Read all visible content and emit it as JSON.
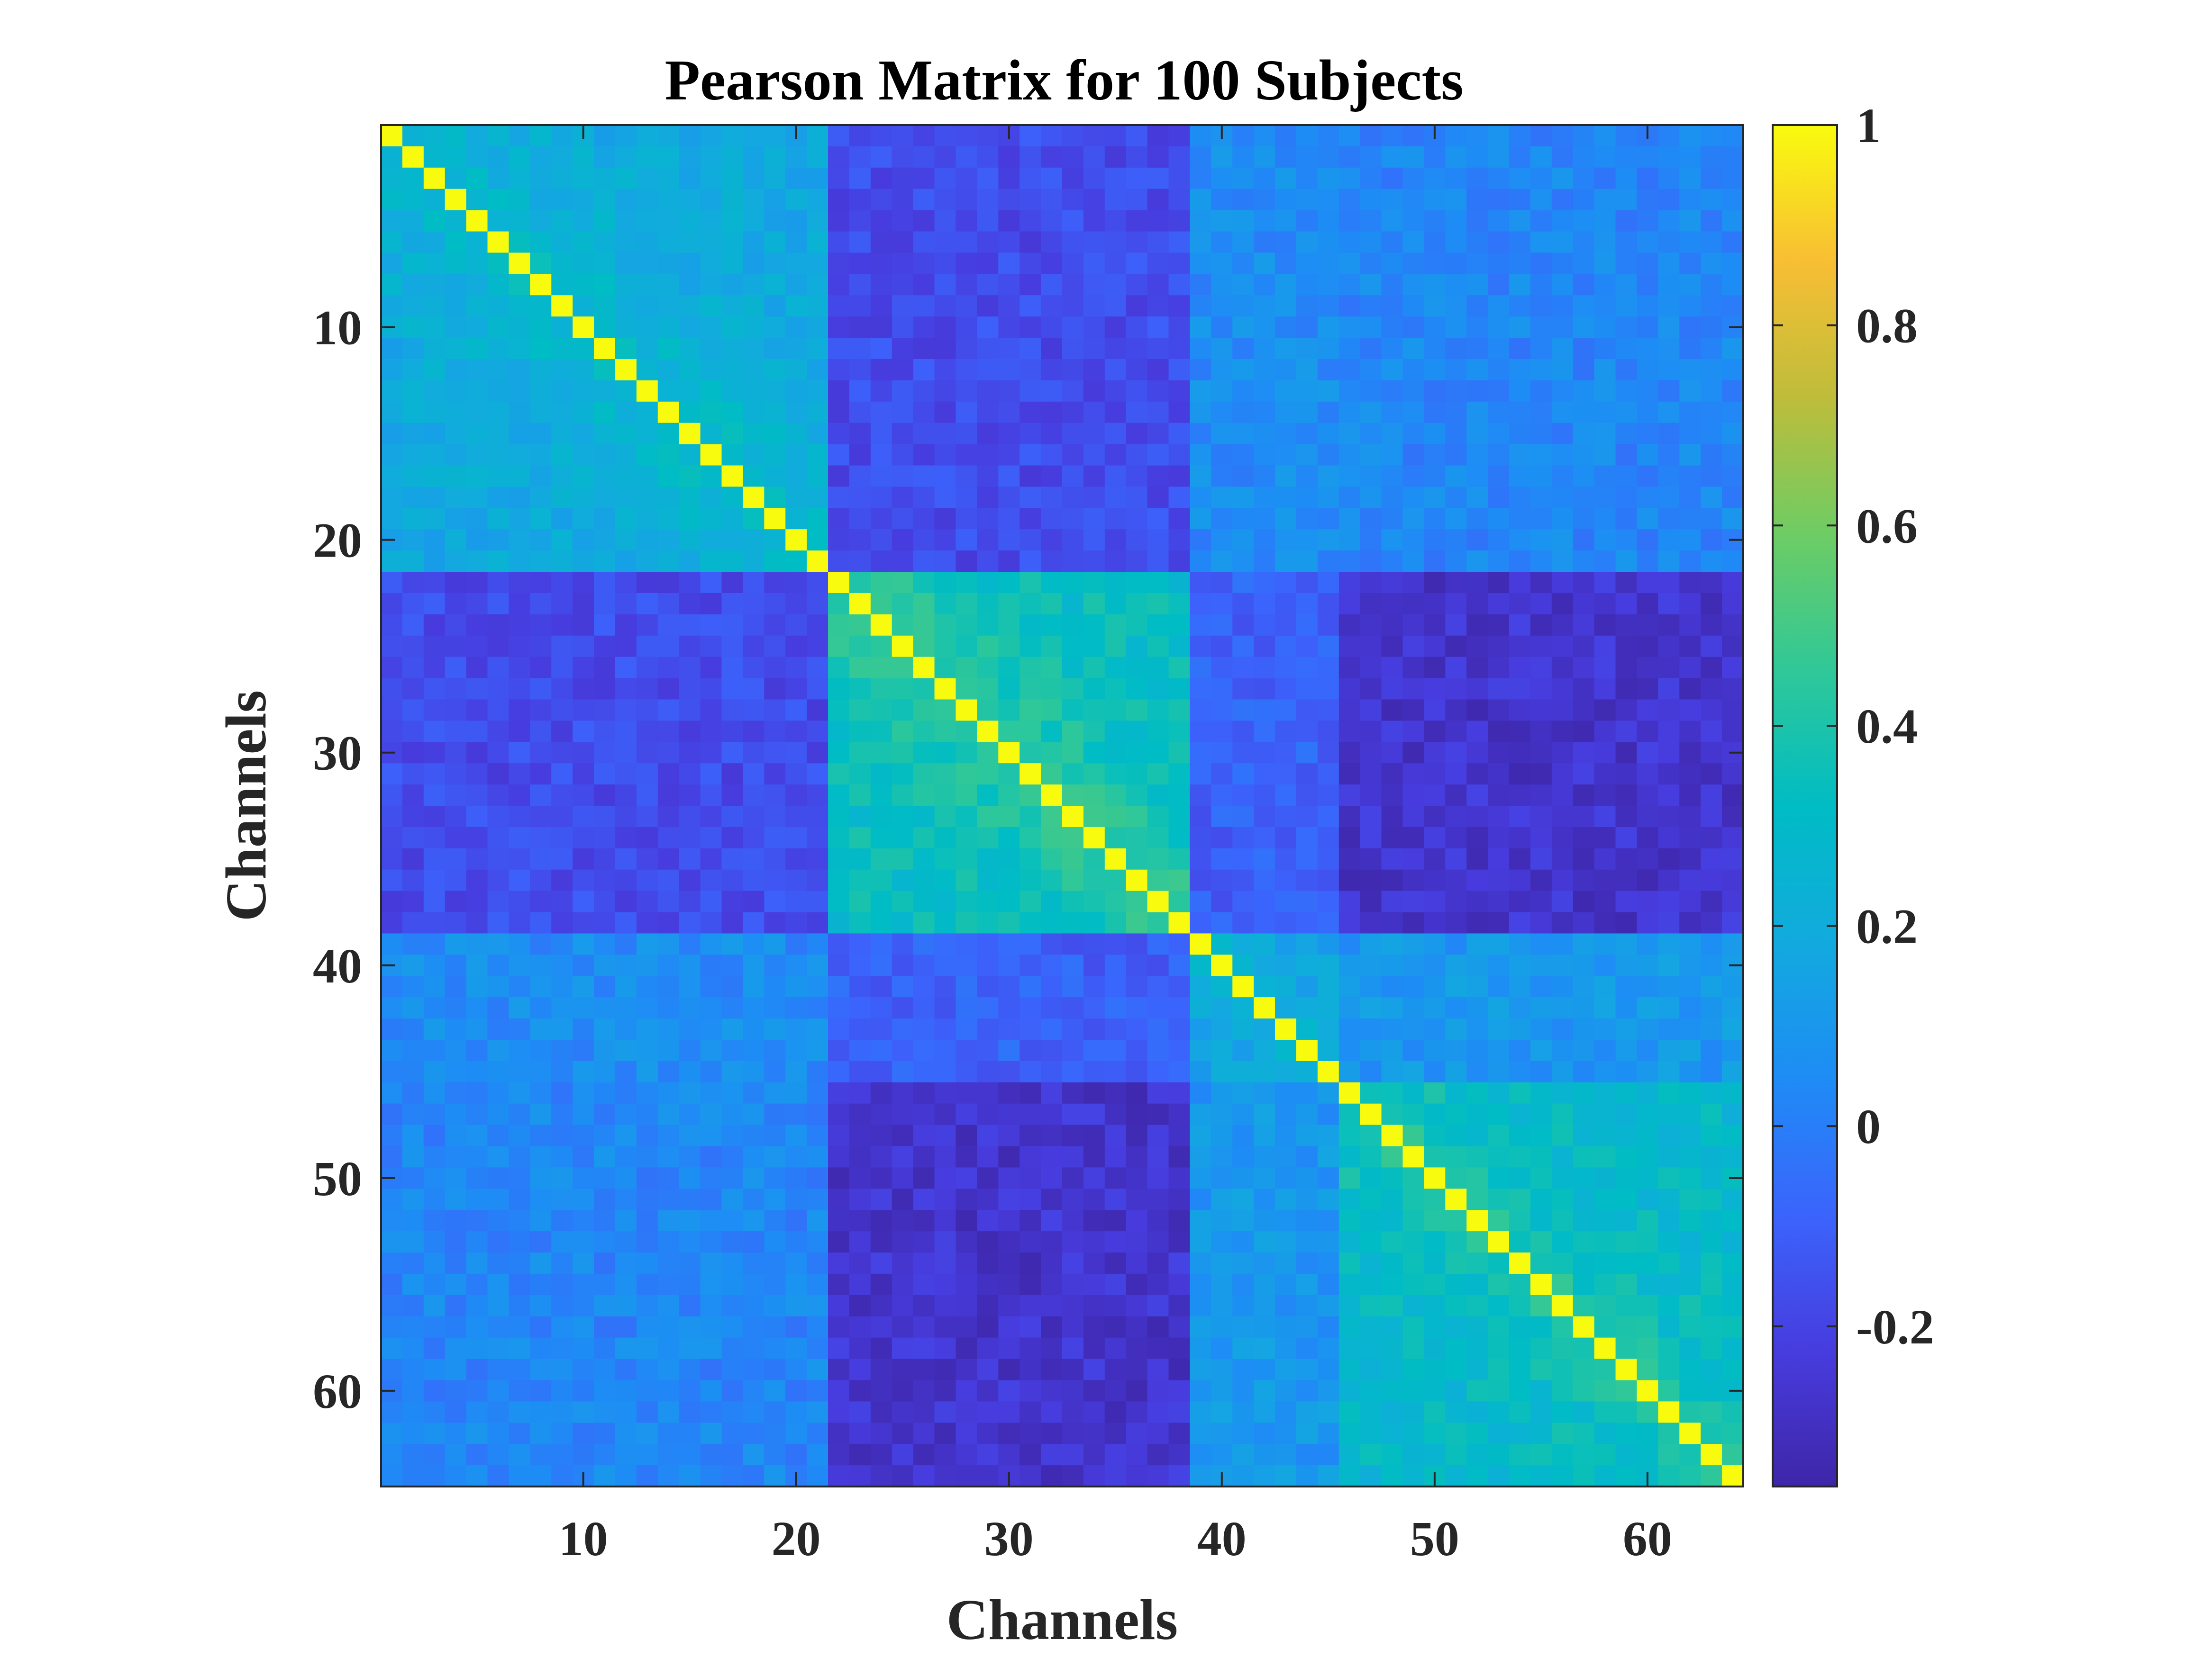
{
  "chart_data": {
    "type": "heatmap",
    "title": "Pearson Matrix for 100 Subjects",
    "xlabel": "Channels",
    "ylabel": "Channels",
    "n_channels": 64,
    "xticks": [
      10,
      20,
      30,
      40,
      50,
      60
    ],
    "yticks": [
      10,
      20,
      30,
      40,
      50,
      60
    ],
    "colormap": "parula",
    "clim": [
      -0.36,
      1.0
    ],
    "colorbar_ticks": [
      -0.2,
      0,
      0.2,
      0.4,
      0.6,
      0.8,
      1
    ],
    "colorbar_tick_labels": [
      "-0.2",
      "0",
      "0.2",
      "0.4",
      "0.6",
      "0.8",
      "1"
    ],
    "diagonal_value": 1,
    "channel_groups": [
      {
        "channels": [
          1,
          21
        ]
      },
      {
        "channels": [
          22,
          38
        ]
      },
      {
        "channels": [
          39,
          45
        ]
      },
      {
        "channels": [
          46,
          64
        ]
      }
    ],
    "group_block_values": [
      [
        0.18,
        -0.17,
        0.05,
        0.03
      ],
      [
        -0.17,
        0.32,
        -0.1,
        -0.27
      ],
      [
        0.05,
        -0.1,
        0.1,
        0.1
      ],
      [
        0.03,
        -0.27,
        0.1,
        0.28
      ]
    ]
  }
}
